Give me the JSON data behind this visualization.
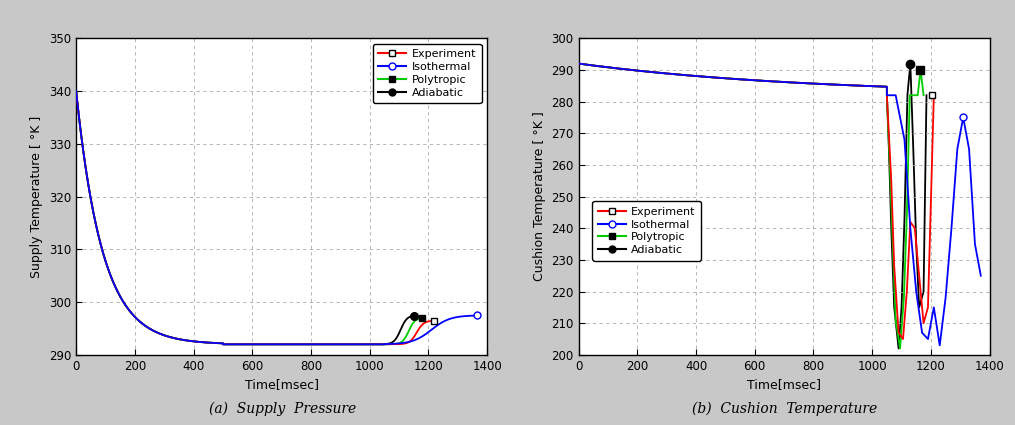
{
  "fig_bg": "#c8c8c8",
  "plot_bg": "#ffffff",
  "caption_a": "(a)  Supply  Pressure",
  "caption_b": "(b)  Cushion  Temperature",
  "subplot_a": {
    "xlabel": "Time[msec]",
    "ylabel": "Supply Temperature [ °K ]",
    "xlim": [
      0,
      1400
    ],
    "ylim": [
      290,
      350
    ],
    "yticks": [
      290,
      300,
      310,
      320,
      330,
      340,
      350
    ],
    "xticks": [
      0,
      200,
      400,
      600,
      800,
      1000,
      1200,
      1400
    ]
  },
  "subplot_b": {
    "xlabel": "Time[msec]",
    "ylabel": "Cushion Temperature [ °K ]",
    "xlim": [
      0,
      1400
    ],
    "ylim": [
      200,
      300
    ],
    "yticks": [
      200,
      210,
      220,
      230,
      240,
      250,
      260,
      270,
      280,
      290,
      300
    ],
    "xticks": [
      0,
      200,
      400,
      600,
      800,
      1000,
      1200,
      1400
    ]
  },
  "colors": {
    "experiment": "#ff0000",
    "isothermal": "#0000ff",
    "polytropic": "#00cc00",
    "adiabatic": "#000000"
  }
}
